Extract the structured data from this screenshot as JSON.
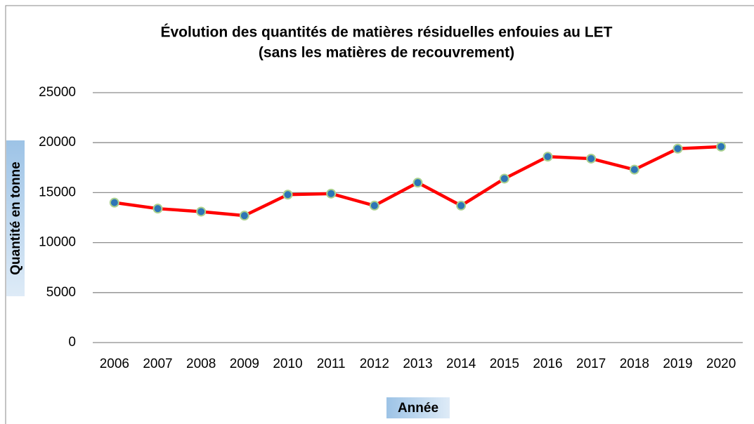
{
  "chart_data": {
    "type": "line",
    "title": "Évolution des quantités de matières résiduelles enfouies au LET",
    "subtitle": "(sans les matières de recouvrement)",
    "x_label": "Année",
    "y_label": "Quantité en tonne",
    "categories": [
      "2006",
      "2007",
      "2008",
      "2009",
      "2010",
      "2011",
      "2012",
      "2013",
      "2014",
      "2015",
      "2016",
      "2017",
      "2018",
      "2019",
      "2020"
    ],
    "series": [
      {
        "name": "Quantité",
        "color": "#ff0000",
        "values": [
          14000,
          13400,
          13100,
          12700,
          14800,
          14900,
          13700,
          16000,
          13700,
          16400,
          18600,
          18400,
          17300,
          19400,
          19600
        ]
      }
    ],
    "marker_color": "#2e75b6",
    "ylim": [
      0,
      25000
    ],
    "yticks": [
      0,
      5000,
      10000,
      15000,
      20000,
      25000
    ],
    "grid": true
  }
}
